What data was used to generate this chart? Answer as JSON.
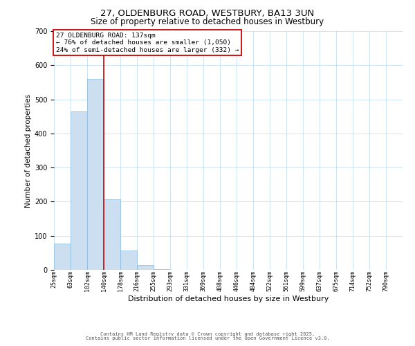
{
  "title": "27, OLDENBURG ROAD, WESTBURY, BA13 3UN",
  "subtitle": "Size of property relative to detached houses in Westbury",
  "xlabel": "Distribution of detached houses by size in Westbury",
  "ylabel": "Number of detached properties",
  "bar_labels": [
    "25sqm",
    "63sqm",
    "102sqm",
    "140sqm",
    "178sqm",
    "216sqm",
    "255sqm",
    "293sqm",
    "331sqm",
    "369sqm",
    "408sqm",
    "446sqm",
    "484sqm",
    "522sqm",
    "561sqm",
    "599sqm",
    "637sqm",
    "675sqm",
    "714sqm",
    "752sqm",
    "790sqm"
  ],
  "bar_heights": [
    78,
    465,
    560,
    207,
    56,
    14,
    2,
    0,
    0,
    0,
    0,
    0,
    0,
    0,
    0,
    0,
    0,
    0,
    0,
    0,
    0
  ],
  "bar_color": "#ccdff0",
  "bar_edge_color": "#88bbdd",
  "vline_x": 3,
  "vline_color": "#cc0000",
  "annotation_title": "27 OLDENBURG ROAD: 137sqm",
  "annotation_line1": "← 76% of detached houses are smaller (1,050)",
  "annotation_line2": "24% of semi-detached houses are larger (332) →",
  "annotation_box_color": "#ffffff",
  "annotation_box_edge": "#cc0000",
  "ylim": [
    0,
    700
  ],
  "yticks": [
    0,
    100,
    200,
    300,
    400,
    500,
    600,
    700
  ],
  "grid_color": "#cce4f4",
  "background_color": "#ffffff",
  "footer1": "Contains HM Land Registry data © Crown copyright and database right 2025.",
  "footer2": "Contains public sector information licensed under the Open Government Licence v3.0."
}
